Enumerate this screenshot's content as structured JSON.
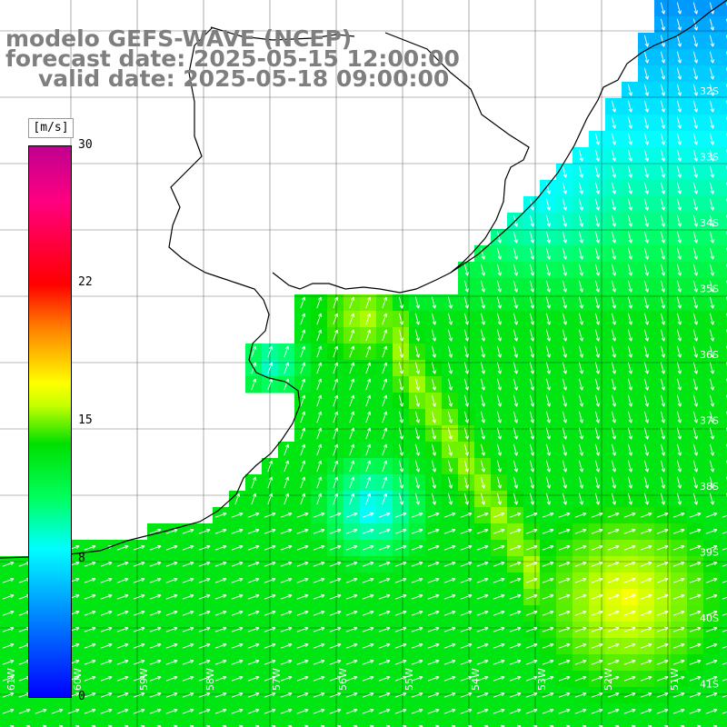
{
  "title": {
    "line1": "modelo GEFS-WAVE (NCEP)",
    "line2": "forecast date: 2025-05-15 12:00:00",
    "line3": "valid date: 2025-05-18 09:00:00"
  },
  "colorbar": {
    "unit": "[m/s]",
    "ticks": [
      "30",
      "22",
      "15",
      "8",
      "0"
    ],
    "tick_values": [
      30,
      22,
      15,
      8,
      0
    ],
    "colors": [
      "#0000ff",
      "#00ffff",
      "#00ff00",
      "#ffff00",
      "#ff0000",
      "#c00090"
    ]
  },
  "axes": {
    "lon_labels": [
      "61W",
      "60W",
      "59W",
      "58W",
      "57W",
      "56W",
      "55W",
      "54W",
      "53W",
      "52W",
      "51W"
    ],
    "lat_labels": [
      "32S",
      "33S",
      "34S",
      "35S",
      "36S",
      "37S",
      "38S",
      "39S",
      "40S",
      "41S"
    ]
  },
  "colors": {
    "land": "#ffffff",
    "grid": "#000000",
    "coast": "#000000",
    "arrow": "#ffffff",
    "title": "#7f7f7f"
  }
}
